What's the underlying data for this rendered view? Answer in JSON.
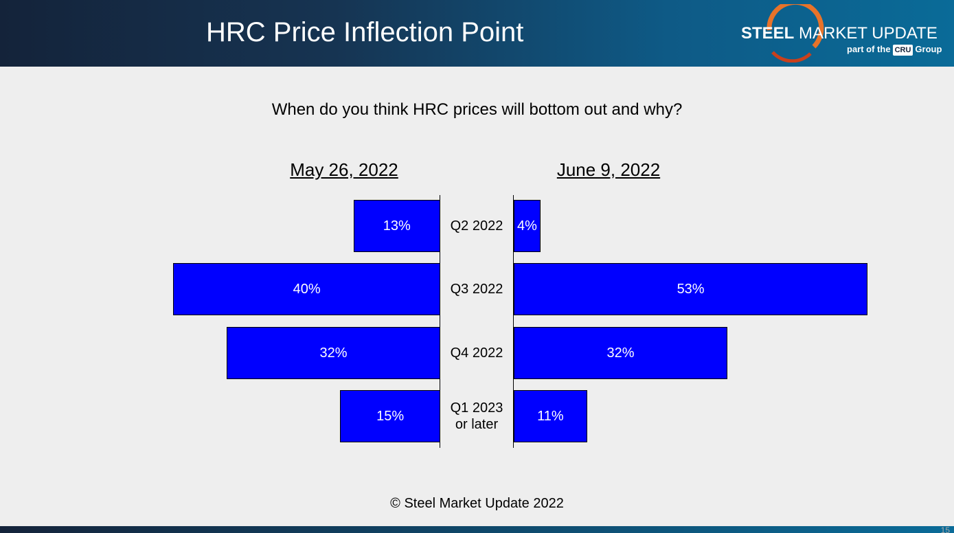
{
  "header": {
    "title": "HRC Price Inflection Point",
    "logo": {
      "brand_bold": "STEEL",
      "brand_rest": "MARKET UPDATE",
      "tagline_pre": "part of the",
      "badge": "CRU",
      "tagline_post": "Group"
    }
  },
  "chart_data": {
    "type": "butterfly-bar",
    "title": "When do you think HRC prices will bottom out and why?",
    "categories": [
      "Q2 2022",
      "Q3 2022",
      "Q4 2022",
      "Q1 2023\nor later"
    ],
    "series": [
      {
        "name": "May 26, 2022",
        "color": "#0000ff",
        "values": [
          13,
          40,
          32,
          15
        ],
        "value_labels": [
          "13%",
          "40%",
          "32%",
          "15%"
        ]
      },
      {
        "name": "June 9, 2022",
        "color": "#0000ff",
        "values": [
          4,
          53,
          32,
          11
        ],
        "value_labels": [
          "4%",
          "53%",
          "32%",
          "11%"
        ]
      }
    ]
  },
  "footer": "© Steel Market Update 2022",
  "page_number": "15"
}
